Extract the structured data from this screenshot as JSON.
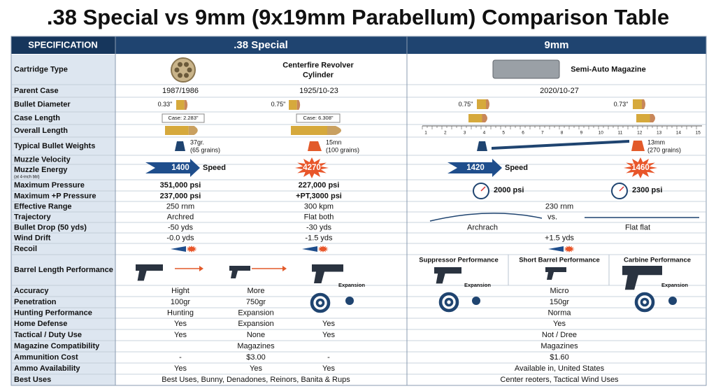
{
  "title": ".38 Special vs 9mm (9x19mm Parabellum) Comparison Table",
  "header": {
    "spec": "SPECIFICATION",
    "col38": ".38 Special",
    "col9": "9mm"
  },
  "ruler": [
    1,
    2,
    3,
    4,
    5,
    6,
    7,
    8,
    9,
    10,
    11,
    12,
    13,
    14,
    15
  ],
  "rows": [
    {
      "label": "Cartridge Type",
      "c38": [
        "Centerfire Revolver",
        "Cylinder"
      ],
      "c9": [
        "Semi-Auto Magazine"
      ]
    },
    {
      "label": "Parent Case",
      "c38": [
        "1987/1986",
        "1925/10-23"
      ],
      "c9": [
        "2020/10-27"
      ]
    },
    {
      "label": "Bullet Diameter",
      "c38": [
        "0.33\"",
        "0.75\""
      ],
      "c9": [
        "0.75\"",
        "0.73\""
      ]
    },
    {
      "label": "Case Length",
      "c38": [
        "Case: 2.283\"",
        "Case: 6.308\""
      ],
      "c9": []
    },
    {
      "label": "Overall Length",
      "c38": [],
      "c9": []
    },
    {
      "label": "Typical Bullet Weights",
      "c38": [
        "37gr.",
        "(65 grains)",
        "15mn",
        "(100 grains)"
      ],
      "c9": [
        "13mm",
        "(270 grains)"
      ]
    },
    {
      "label": "Muzzle Velocity",
      "c38": [],
      "c9": []
    },
    {
      "label": "Muzzle Energy",
      "sub": "(at 4-inch bbl)",
      "c38": [
        "1400",
        "Speed",
        "4270"
      ],
      "c9": [
        "1420",
        "Speed",
        "1460"
      ]
    },
    {
      "label": "Maximum Pressure",
      "c38": [
        "351,000 psi",
        "227,000 psi"
      ],
      "c9": [
        "2000 psi",
        "2300 psi"
      ]
    },
    {
      "label": "Maximum +P Pressure",
      "c38": [
        "237,000 psi",
        "+PT,3000 psi"
      ],
      "c9": []
    },
    {
      "label": "Effective Range",
      "c38": [
        "250 rnm",
        "300 kpm"
      ],
      "c9": [
        "230 rnm"
      ]
    },
    {
      "label": "Trajectory",
      "c38": [
        "Archred",
        "Flat both"
      ],
      "c9": [
        "vs."
      ]
    },
    {
      "label": "Bullet Drop (50 yds)",
      "c38": [
        "-50 yds",
        "-30 yds"
      ],
      "c9": [
        "Archrach",
        "Flat flat"
      ]
    },
    {
      "label": "Wind Drift",
      "c38": [
        "-0.0 yds",
        "-1.5 yds"
      ],
      "c9": [
        "+1.5 yds"
      ]
    },
    {
      "label": "Recoil",
      "c38": [],
      "c9": []
    },
    {
      "label": "Barrel Length Performance",
      "c38": [],
      "c9": [
        "Suppressor Performance",
        "Short Barrel Performance",
        "Carbine Performance"
      ]
    },
    {
      "label": "Accuracy",
      "c38": [
        "Hight",
        "More",
        "Expansion"
      ],
      "c9": [
        "Expansion",
        "Micro",
        "Expansion"
      ]
    },
    {
      "label": "Penetration",
      "c38": [
        "100gr",
        "750gr"
      ],
      "c9": [
        "150gr"
      ]
    },
    {
      "label": "Hunting Performance",
      "c38": [
        "Hunting",
        "Expansion"
      ],
      "c9": [
        "Norma"
      ]
    },
    {
      "label": "Home Defense",
      "c38": [
        "Yes",
        "Expansion",
        "Yes"
      ],
      "c9": [
        "Yes"
      ]
    },
    {
      "label": "Tactical / Duty Use",
      "c38": [
        "Yes",
        "None",
        "Yes"
      ],
      "c9": [
        "Not / Dree"
      ]
    },
    {
      "label": "Magazine Compatibility",
      "c38": [
        "Magazines"
      ],
      "c9": [
        "Magazines"
      ]
    },
    {
      "label": "Ammunition Cost",
      "c38": [
        "-",
        "$3.00",
        "-"
      ],
      "c9": [
        "$1.60"
      ]
    },
    {
      "label": "Ammo Availability",
      "c38": [
        "Yes",
        "Yes",
        "Yes"
      ],
      "c9": [
        "Available in, United States"
      ]
    },
    {
      "label": "Best Uses",
      "c38": [
        "Best Uses, Bunny, Denadones, Reinors, Banita & Rups"
      ],
      "c9": [
        "Center reoters, Tactical Wind Uses"
      ]
    }
  ]
}
